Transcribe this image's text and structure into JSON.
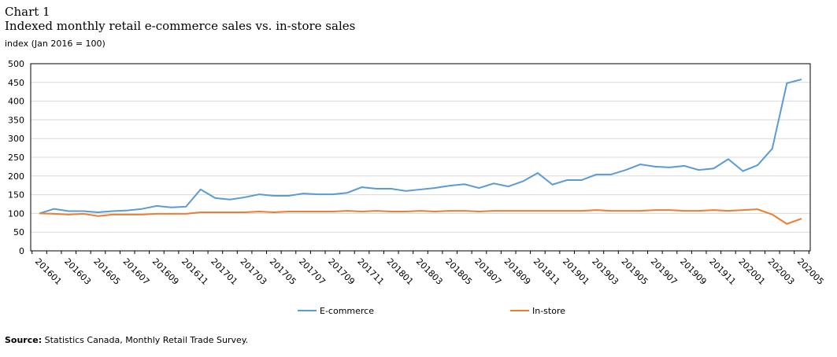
{
  "header": {
    "chart_number": "Chart 1",
    "title": "Indexed monthly retail e-commerce sales vs. in-store sales",
    "unit": "index (Jan 2016 = 100)"
  },
  "footer": {
    "source_label": "Source:",
    "source_text": " Statistics Canada, Monthly Retail Trade Survey."
  },
  "chart_data": {
    "type": "line",
    "title": "Indexed monthly retail e-commerce sales vs. in-store sales",
    "ylabel": "index (Jan 2016 = 100)",
    "ylim": [
      0,
      500
    ],
    "yticks": [
      0,
      50,
      100,
      150,
      200,
      250,
      300,
      350,
      400,
      450,
      500
    ],
    "grid": true,
    "legend": "bottom",
    "x": [
      "201601",
      "201602",
      "201603",
      "201604",
      "201605",
      "201606",
      "201607",
      "201608",
      "201609",
      "201610",
      "201611",
      "201612",
      "201701",
      "201702",
      "201703",
      "201704",
      "201705",
      "201706",
      "201707",
      "201708",
      "201709",
      "201710",
      "201711",
      "201712",
      "201801",
      "201802",
      "201803",
      "201804",
      "201805",
      "201806",
      "201807",
      "201808",
      "201809",
      "201810",
      "201811",
      "201812",
      "201901",
      "201902",
      "201903",
      "201904",
      "201905",
      "201906",
      "201907",
      "201908",
      "201909",
      "201910",
      "201911",
      "201912",
      "202001",
      "202002",
      "202003",
      "202004",
      "202005"
    ],
    "series": [
      {
        "name": "E-commerce",
        "color": "#5b9bd5",
        "values": [
          100,
          112,
          106,
          106,
          103,
          106,
          108,
          112,
          120,
          116,
          118,
          164,
          141,
          137,
          143,
          151,
          147,
          147,
          153,
          151,
          151,
          155,
          170,
          166,
          166,
          160,
          164,
          168,
          174,
          178,
          168,
          180,
          172,
          186,
          208,
          177,
          189,
          189,
          204,
          204,
          216,
          231,
          225,
          223,
          227,
          216,
          220,
          245,
          213,
          229,
          273,
          448,
          458
        ]
      },
      {
        "name": "In-store",
        "color": "#ed7d31",
        "values": [
          100,
          99,
          97,
          99,
          93,
          97,
          97,
          97,
          99,
          99,
          99,
          103,
          103,
          103,
          103,
          105,
          103,
          105,
          105,
          105,
          105,
          107,
          105,
          107,
          105,
          105,
          107,
          105,
          107,
          107,
          105,
          107,
          107,
          107,
          107,
          107,
          107,
          107,
          109,
          107,
          107,
          107,
          109,
          109,
          107,
          107,
          109,
          107,
          109,
          111,
          97,
          72,
          86
        ]
      }
    ]
  }
}
